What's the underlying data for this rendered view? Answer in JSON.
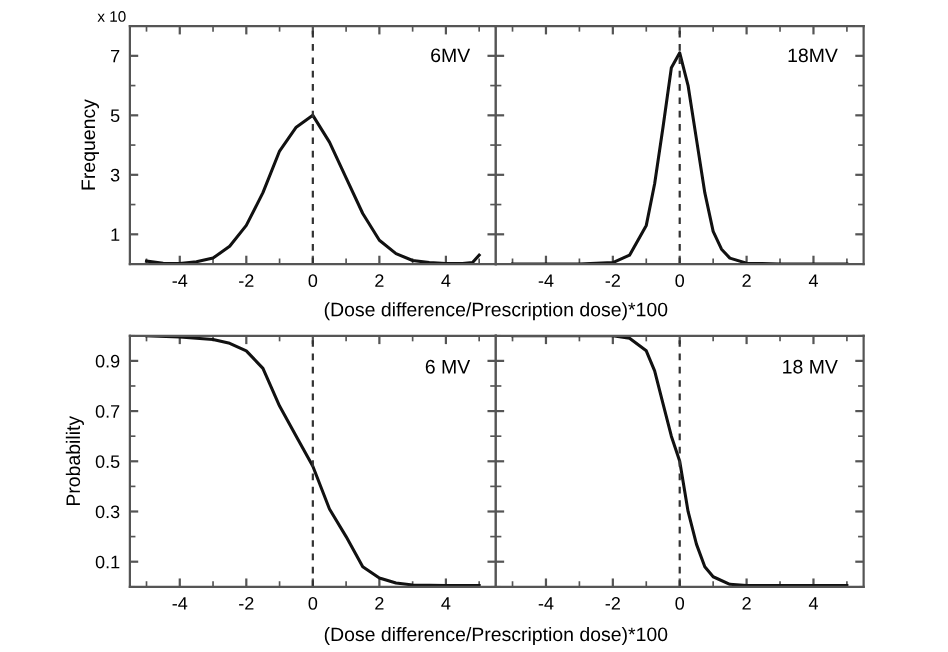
{
  "chart_data": [
    {
      "type": "line",
      "ylabel": "Frequency",
      "xlabel": "(Dose difference/Prescription dose)*100",
      "annotations": [
        "6MV",
        "x 10"
      ],
      "xlim": [
        -5.5,
        5.5
      ],
      "ylim": [
        0,
        8
      ],
      "xticks": [
        -4,
        -2,
        0,
        2,
        4
      ],
      "yticks": [
        1,
        3,
        5,
        7
      ],
      "grid": false,
      "legend": false,
      "ref_lines": [
        {
          "axis": "x",
          "value": 0,
          "line_style": "dashed",
          "color": "#333333"
        }
      ],
      "series": [
        {
          "color": "#111111",
          "x": [
            -5,
            -4.5,
            -4,
            -3.5,
            -3,
            -2.5,
            -2,
            -1.5,
            -1,
            -0.5,
            0,
            0.5,
            1,
            1.5,
            2,
            2.5,
            3,
            3.5,
            4,
            4.5,
            4.8,
            5
          ],
          "values": [
            0.1,
            0.03,
            0.02,
            0.08,
            0.2,
            0.6,
            1.3,
            2.4,
            3.8,
            4.6,
            5.0,
            4.1,
            2.9,
            1.7,
            0.8,
            0.35,
            0.12,
            0.05,
            0.02,
            0.02,
            0.05,
            0.3
          ]
        }
      ]
    },
    {
      "type": "line",
      "annotations": [
        "18MV"
      ],
      "xlim": [
        -5.5,
        5.5
      ],
      "ylim": [
        0,
        8
      ],
      "xticks": [
        -4,
        -2,
        0,
        2,
        4
      ],
      "yticks": [
        1,
        3,
        5,
        7
      ],
      "tick_labels": "x",
      "grid": false,
      "legend": false,
      "ref_lines": [
        {
          "axis": "x",
          "value": 0,
          "line_style": "dashed",
          "color": "#333333"
        }
      ],
      "series": [
        {
          "color": "#111111",
          "x": [
            -5,
            -4,
            -3,
            -2,
            -1.5,
            -1,
            -0.75,
            -0.5,
            -0.25,
            0,
            0.25,
            0.5,
            0.75,
            1,
            1.25,
            1.5,
            2,
            3,
            4,
            5
          ],
          "values": [
            0,
            0,
            0,
            0.05,
            0.3,
            1.3,
            2.7,
            4.6,
            6.6,
            7.1,
            6.0,
            4.2,
            2.4,
            1.1,
            0.5,
            0.2,
            0.03,
            0,
            0,
            0
          ]
        }
      ]
    },
    {
      "type": "line",
      "ylabel": "Probability",
      "xlabel": "(Dose difference/Prescription dose)*100",
      "annotations": [
        "6 MV"
      ],
      "xlim": [
        -5.5,
        5.5
      ],
      "ylim": [
        0,
        1
      ],
      "xticks": [
        -4,
        -2,
        0,
        2,
        4
      ],
      "yticks": [
        0.1,
        0.3,
        0.5,
        0.7,
        0.9
      ],
      "grid": false,
      "legend": false,
      "ref_lines": [
        {
          "axis": "x",
          "value": 0,
          "line_style": "dashed",
          "color": "#333333"
        }
      ],
      "series": [
        {
          "color": "#111111",
          "x": [
            -5,
            -4,
            -3,
            -2.5,
            -2,
            -1.5,
            -1,
            -0.5,
            0,
            0.5,
            1,
            1.5,
            2,
            2.5,
            3,
            4,
            5
          ],
          "values": [
            1.0,
            0.995,
            0.985,
            0.97,
            0.94,
            0.87,
            0.72,
            0.6,
            0.48,
            0.31,
            0.2,
            0.08,
            0.035,
            0.015,
            0.007,
            0.005,
            0.005
          ]
        }
      ]
    },
    {
      "type": "line",
      "annotations": [
        "18 MV"
      ],
      "xlim": [
        -5.5,
        5.5
      ],
      "ylim": [
        0,
        1
      ],
      "xticks": [
        -4,
        -2,
        0,
        2,
        4
      ],
      "yticks": [
        0.1,
        0.3,
        0.5,
        0.7,
        0.9
      ],
      "tick_labels": "x",
      "grid": false,
      "legend": false,
      "ref_lines": [
        {
          "axis": "x",
          "value": 0,
          "line_style": "dashed",
          "color": "#333333"
        }
      ],
      "series": [
        {
          "color": "#111111",
          "x": [
            -5,
            -3,
            -2,
            -1.5,
            -1,
            -0.75,
            -0.5,
            -0.25,
            0,
            0.25,
            0.5,
            0.75,
            1,
            1.5,
            2,
            5
          ],
          "values": [
            1.0,
            1.0,
            1.0,
            0.99,
            0.94,
            0.86,
            0.73,
            0.6,
            0.5,
            0.3,
            0.17,
            0.08,
            0.04,
            0.01,
            0.005,
            0.005
          ]
        }
      ]
    }
  ]
}
